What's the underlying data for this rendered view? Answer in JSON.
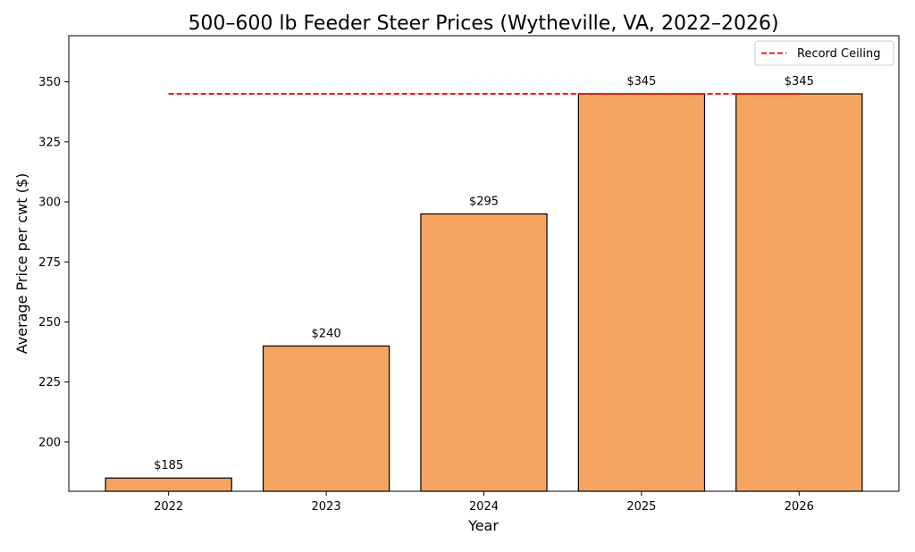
{
  "chart_data": {
    "type": "bar",
    "title": "500–600 lb Feeder Steer Prices (Wytheville, VA, 2022–2026)",
    "xlabel": "Year",
    "ylabel": "Average Price per cwt ($)",
    "categories": [
      "2022",
      "2023",
      "2024",
      "2025",
      "2026"
    ],
    "values": [
      185,
      240,
      295,
      345,
      345
    ],
    "data_labels": [
      "$185",
      "$240",
      "$295",
      "$345",
      "$345"
    ],
    "ylim": [
      179.5,
      369.2
    ],
    "yticks": [
      200,
      225,
      250,
      275,
      300,
      325,
      350
    ],
    "grid": false,
    "bar_color": "#f4a460",
    "bar_edge_color": "#000000",
    "reference_line": {
      "name": "Record Ceiling",
      "value": 345,
      "color": "#ff0000",
      "style": "dashed"
    },
    "legend": {
      "placement": "top-right",
      "entries": [
        "Record Ceiling"
      ]
    }
  }
}
